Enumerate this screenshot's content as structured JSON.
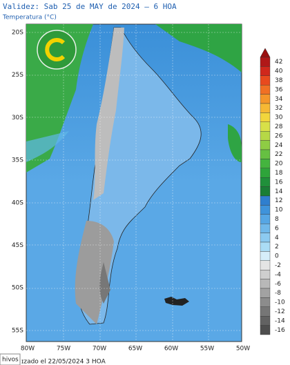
{
  "header": {
    "title": "Validez: Sab 25 de MAY de 2024 — 6 HOA",
    "subtitle": "Temperatura (°C)"
  },
  "map": {
    "lat_labels": [
      "20S",
      "25S",
      "30S",
      "35S",
      "40S",
      "45S",
      "50S",
      "55S"
    ],
    "lon_labels": [
      "80W",
      "75W",
      "70W",
      "65W",
      "60W",
      "55W",
      "50W"
    ]
  },
  "legend": {
    "levels": [
      42,
      40,
      38,
      36,
      34,
      32,
      30,
      28,
      26,
      24,
      22,
      20,
      18,
      16,
      14,
      12,
      10,
      8,
      6,
      4,
      2,
      0,
      -2,
      -4,
      -6,
      -8,
      -10,
      -12,
      -14,
      -16
    ],
    "colors": [
      "#b01818",
      "#d0281c",
      "#e84a1e",
      "#f07024",
      "#f4962a",
      "#f6b834",
      "#f2d63c",
      "#d8e048",
      "#b6d846",
      "#8ecc44",
      "#66c042",
      "#44b43e",
      "#2ea43a",
      "#20903a",
      "#1a7e36",
      "#2f7fcf",
      "#3f93db",
      "#56a6e4",
      "#70b8ea",
      "#8ccaf0",
      "#aadcf5",
      "#d6eefa",
      "#e4e4e4",
      "#cecece",
      "#b8b8b8",
      "#a2a2a2",
      "#8c8c8c",
      "#767676",
      "#626262",
      "#4e4e4e"
    ]
  },
  "footer": {
    "tab": "hivos",
    "updated": "ɪzado el 22/05/2024 3 HOA"
  }
}
